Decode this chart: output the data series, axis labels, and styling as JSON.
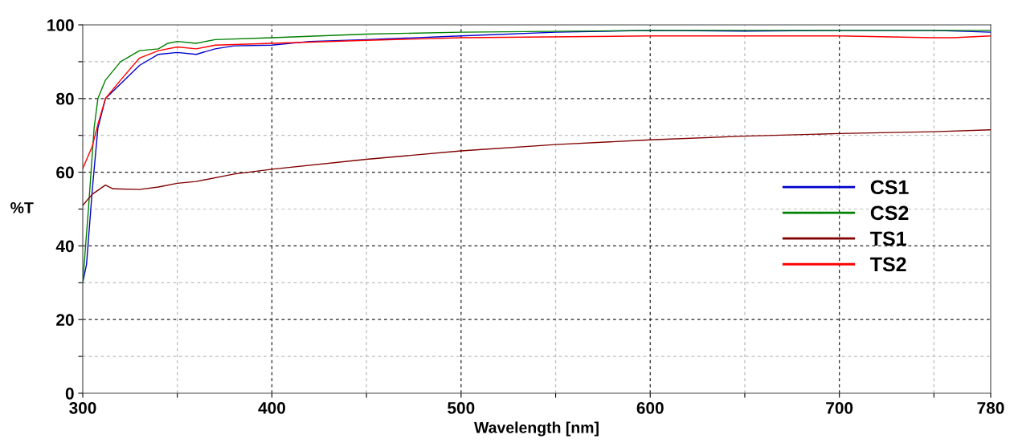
{
  "chart_data": {
    "type": "line",
    "xlabel": "Wavelength [nm]",
    "ylabel": "%T",
    "xlim": [
      300,
      780
    ],
    "xticks": [
      300,
      {
        "value": 350,
        "label": null
      },
      400,
      {
        "value": 450,
        "label": null
      },
      500,
      {
        "value": 550,
        "label": null
      },
      600,
      {
        "value": 650,
        "label": null
      },
      700,
      {
        "value": 750,
        "label": null
      },
      780
    ],
    "ylim": [
      0,
      100
    ],
    "yticks": [
      0,
      {
        "value": 10,
        "label": null
      },
      20,
      {
        "value": 30,
        "label": null
      },
      40,
      {
        "value": 50,
        "label": null
      },
      60,
      {
        "value": 70,
        "label": null
      },
      80,
      {
        "value": 90,
        "label": null
      },
      100
    ],
    "grid": true,
    "legend": "right",
    "line_style": "solid",
    "marker": "none",
    "series": [
      {
        "name": "CS1",
        "color": "#0000cc",
        "x": [
          300,
          302,
          305,
          308,
          312,
          320,
          330,
          340,
          350,
          360,
          370,
          380,
          400,
          420,
          450,
          500,
          550,
          600,
          650,
          700,
          750,
          780
        ],
        "values": [
          30,
          35,
          55,
          72,
          80,
          84,
          89,
          92,
          92.5,
          92,
          93.5,
          94.3,
          94.5,
          95.5,
          96,
          97,
          98,
          98.5,
          98.3,
          98.5,
          98.5,
          98
        ]
      },
      {
        "name": "CS2",
        "color": "#008000",
        "x": [
          300,
          303,
          306,
          308,
          312,
          320,
          330,
          340,
          345,
          350,
          360,
          370,
          400,
          450,
          500,
          600,
          700,
          760,
          780
        ],
        "values": [
          30,
          50,
          72,
          80,
          85,
          90,
          93,
          93.5,
          95,
          95.5,
          95,
          96,
          96.5,
          97.5,
          98,
          98.5,
          98.5,
          98.5,
          98.5
        ]
      },
      {
        "name": "TS1",
        "color": "#800000",
        "x": [
          300,
          305,
          312,
          316,
          330,
          340,
          350,
          360,
          380,
          400,
          450,
          500,
          550,
          600,
          650,
          700,
          750,
          780
        ],
        "values": [
          51,
          54,
          56.5,
          55.5,
          55.3,
          56,
          57,
          57.5,
          59.5,
          60.8,
          63.5,
          65.8,
          67.5,
          68.8,
          69.8,
          70.5,
          71,
          71.5
        ]
      },
      {
        "name": "TS2",
        "color": "#ff0000",
        "x": [
          300,
          305,
          308,
          312,
          320,
          330,
          340,
          350,
          360,
          370,
          400,
          450,
          500,
          600,
          700,
          750,
          760,
          780
        ],
        "values": [
          61,
          67,
          73,
          80,
          85,
          91,
          93,
          94,
          93.5,
          94.5,
          95,
          95.8,
          96.5,
          97,
          97,
          96.5,
          96.5,
          97
        ]
      }
    ]
  }
}
